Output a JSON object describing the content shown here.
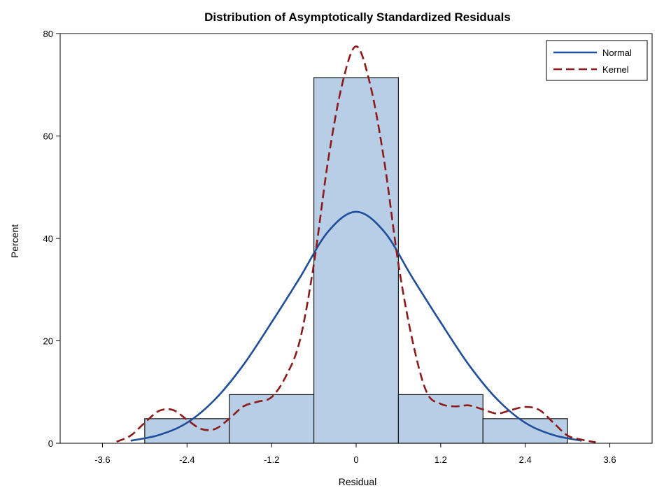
{
  "chart_data": {
    "type": "histogram",
    "title": "Distribution of Asymptotically Standardized Residuals",
    "xlabel": "Residual",
    "ylabel": "Percent",
    "xlim": [
      -4.2,
      4.2
    ],
    "ylim": [
      0,
      80
    ],
    "x_ticks": [
      -3.6,
      -2.4,
      -1.2,
      0,
      1.2,
      2.4,
      3.6
    ],
    "x_tick_labels": [
      "-3.6",
      "-2.4",
      "-1.2",
      "0",
      "1.2",
      "2.4",
      "3.6"
    ],
    "y_ticks": [
      0,
      20,
      40,
      60,
      80
    ],
    "y_tick_labels": [
      "0",
      "20",
      "40",
      "60",
      "80"
    ],
    "grid": false,
    "legend_position": "top-right",
    "bins": [
      {
        "x0": -3.0,
        "x1": -1.8,
        "value": 4.8
      },
      {
        "x0": -1.8,
        "x1": -0.6,
        "value": 9.5
      },
      {
        "x0": -0.6,
        "x1": 0.6,
        "value": 71.4
      },
      {
        "x0": 0.6,
        "x1": 1.8,
        "value": 9.5
      },
      {
        "x0": 1.8,
        "x1": 3.0,
        "value": 4.8
      }
    ],
    "series": [
      {
        "name": "Normal",
        "style": "solid",
        "color": "#1f4e9c",
        "x": [
          -3.2,
          -2.8,
          -2.4,
          -2.0,
          -1.6,
          -1.2,
          -0.8,
          -0.4,
          0.0,
          0.4,
          0.8,
          1.2,
          1.6,
          2.0,
          2.4,
          2.8,
          3.2
        ],
        "y": [
          0.5,
          1.6,
          4.0,
          8.6,
          15.3,
          23.6,
          32.3,
          41.3,
          45.2,
          41.3,
          32.3,
          23.6,
          15.3,
          8.6,
          4.0,
          1.6,
          0.5
        ]
      },
      {
        "name": "Kernel",
        "style": "dashed",
        "color": "#8b1a1a",
        "x": [
          -3.4,
          -3.2,
          -3.0,
          -2.8,
          -2.6,
          -2.4,
          -2.2,
          -2.0,
          -1.8,
          -1.6,
          -1.4,
          -1.2,
          -1.0,
          -0.8,
          -0.6,
          -0.4,
          -0.2,
          0.0,
          0.2,
          0.4,
          0.6,
          0.8,
          1.0,
          1.2,
          1.4,
          1.6,
          1.8,
          2.0,
          2.2,
          2.4,
          2.6,
          2.8,
          3.0,
          3.2,
          3.4
        ],
        "y": [
          0.3,
          1.5,
          4.0,
          6.3,
          6.5,
          4.6,
          2.8,
          2.8,
          4.8,
          7.2,
          8.1,
          9.0,
          13.0,
          20.0,
          35.0,
          55.0,
          70.0,
          77.5,
          70.0,
          55.0,
          35.0,
          20.0,
          10.0,
          7.7,
          7.2,
          7.4,
          6.6,
          5.8,
          6.5,
          7.1,
          6.5,
          4.0,
          1.5,
          0.7,
          0.2
        ]
      }
    ],
    "bar_fill": "#b8cde6",
    "bar_stroke": "#1a1a1a"
  }
}
